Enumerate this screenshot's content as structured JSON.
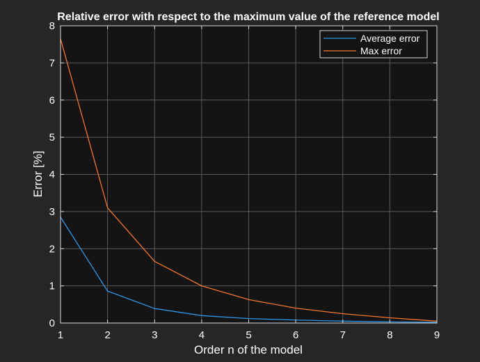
{
  "chart_data": {
    "type": "line",
    "title": "Relative error with respect to the maximum value of the reference model",
    "xlabel": "Order n of the model",
    "ylabel": "Error [%]",
    "xlim": [
      1,
      9
    ],
    "ylim": [
      0,
      8
    ],
    "xticks": [
      1,
      2,
      3,
      4,
      5,
      6,
      7,
      8,
      9
    ],
    "yticks": [
      0,
      1,
      2,
      3,
      4,
      5,
      6,
      7,
      8
    ],
    "grid": true,
    "legend_position": "top-right",
    "x": [
      1,
      2,
      3,
      4,
      5,
      6,
      7,
      8,
      9
    ],
    "series": [
      {
        "name": "Average error",
        "color": "#2f97e8",
        "values": [
          2.85,
          0.86,
          0.39,
          0.2,
          0.12,
          0.08,
          0.05,
          0.03,
          0.02
        ]
      },
      {
        "name": "Max error",
        "color": "#f2762e",
        "values": [
          7.65,
          3.1,
          1.66,
          1.0,
          0.63,
          0.4,
          0.25,
          0.14,
          0.05
        ]
      }
    ],
    "colors": {
      "figure_background": "#262626",
      "axes_background": "#141414",
      "axes_border": "#d9d9d9",
      "grid": "#5a5a5a",
      "text": "#ffffff"
    }
  }
}
